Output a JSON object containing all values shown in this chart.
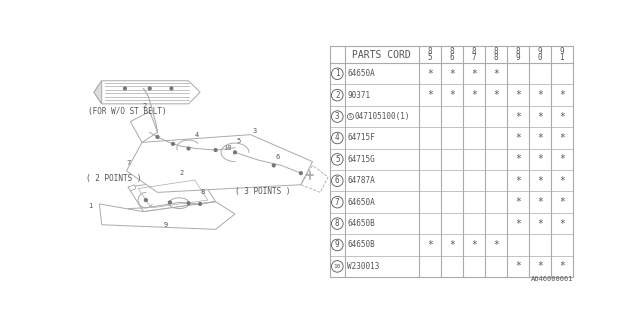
{
  "bg_color": "#ffffff",
  "line_color": "#aaaaaa",
  "text_color": "#555555",
  "table_header": "PARTS CORD",
  "col_headers_split": [
    [
      "8",
      "5"
    ],
    [
      "8",
      "6"
    ],
    [
      "8",
      "7"
    ],
    [
      "8",
      "8"
    ],
    [
      "8",
      "9"
    ],
    [
      "9",
      "0"
    ],
    [
      "9",
      "1"
    ]
  ],
  "rows": [
    {
      "num": "1",
      "part": "64650A",
      "marks": [
        1,
        1,
        1,
        1,
        0,
        0,
        0
      ]
    },
    {
      "num": "2",
      "part": "90371",
      "marks": [
        1,
        1,
        1,
        1,
        1,
        1,
        1
      ]
    },
    {
      "num": "3",
      "part": "S047105100(1)",
      "marks": [
        0,
        0,
        0,
        0,
        1,
        1,
        1
      ]
    },
    {
      "num": "4",
      "part": "64715F",
      "marks": [
        0,
        0,
        0,
        0,
        1,
        1,
        1
      ]
    },
    {
      "num": "5",
      "part": "64715G",
      "marks": [
        0,
        0,
        0,
        0,
        1,
        1,
        1
      ]
    },
    {
      "num": "6",
      "part": "64787A",
      "marks": [
        0,
        0,
        0,
        0,
        1,
        1,
        1
      ]
    },
    {
      "num": "7",
      "part": "64650A",
      "marks": [
        0,
        0,
        0,
        0,
        1,
        1,
        1
      ]
    },
    {
      "num": "8",
      "part": "64650B",
      "marks": [
        0,
        0,
        0,
        0,
        1,
        1,
        1
      ]
    },
    {
      "num": "9",
      "part": "64650B",
      "marks": [
        1,
        1,
        1,
        1,
        0,
        0,
        0
      ]
    },
    {
      "num": "10",
      "part": "W230013",
      "marks": [
        0,
        0,
        0,
        0,
        1,
        1,
        1
      ]
    }
  ],
  "footer": "A646000061",
  "label_2pts": "( 2 POINTS )",
  "label_3pts": "( 3 POINTS )",
  "label_wo": "(FOR W/O ST BELT)"
}
